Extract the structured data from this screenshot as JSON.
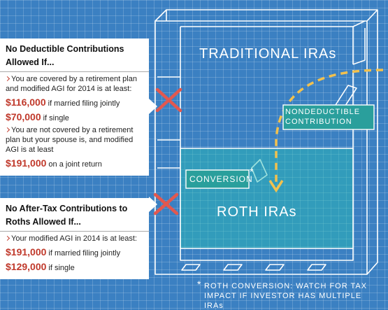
{
  "panels": [
    {
      "title": "No Deductible Contributions Allowed If...",
      "items": [
        {
          "text": "You are covered by a retirement plan and modified AGI for 2014 is at least:",
          "amounts": [
            {
              "amount": "$116,000",
              "note": "if married filing jointly"
            },
            {
              "amount": "$70,000",
              "note": "if single"
            }
          ]
        },
        {
          "text": "You are not covered by a retirement plan but your spouse is, and modified AGI is at least",
          "amounts": [
            {
              "amount": "$191,000",
              "note": "on a joint return"
            }
          ]
        }
      ]
    },
    {
      "title": "No After-Tax Contributions to Roths Allowed If...",
      "items": [
        {
          "text": "Your modified AGI in 2014 is at least:",
          "amounts": [
            {
              "amount": "$191,000",
              "note": "if married filing jointly"
            },
            {
              "amount": "$129,000",
              "note": "if single"
            }
          ]
        }
      ]
    }
  ],
  "diagram": {
    "traditional": "TRADITIONAL IRAs",
    "roth": "ROTH IRAs",
    "nondeductible": "NONDEDUCTIBLE CONTRIBUTION",
    "conversion": "CONVERSION",
    "asterisk": "*",
    "footnote": "ROTH CONVERSION: WATCH FOR TAX IMPACT IF INVESTOR HAS MULTIPLE IRAs"
  }
}
